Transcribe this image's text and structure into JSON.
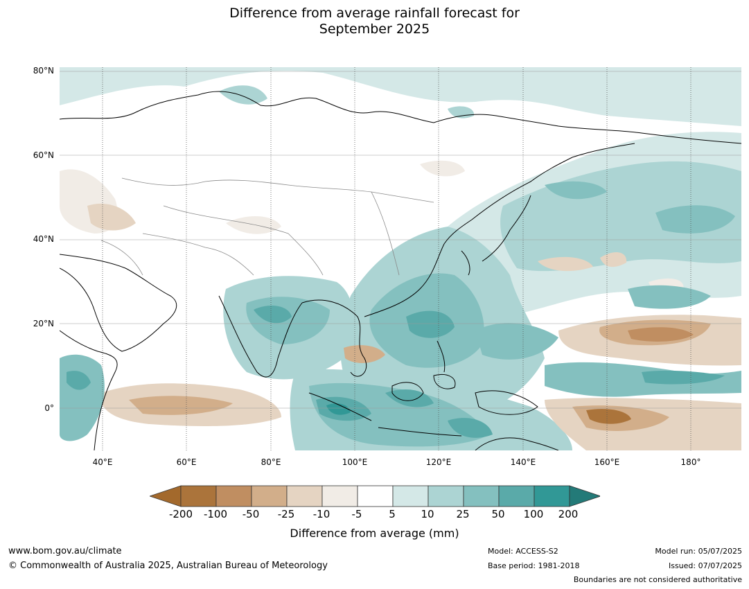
{
  "title_line1": "Difference from average rainfall forecast for",
  "title_line2": "September 2025",
  "lat_labels": [
    "80°N",
    "60°N",
    "40°N",
    "20°N",
    "0°"
  ],
  "lon_labels": [
    "40°E",
    "60°E",
    "80°E",
    "100°E",
    "120°E",
    "140°E",
    "160°E",
    "180°"
  ],
  "colorbar": {
    "labels": [
      "-200",
      "-100",
      "-50",
      "-25",
      "-10",
      "-5",
      "5",
      "10",
      "25",
      "50",
      "100",
      "200"
    ],
    "colors": [
      "#a3692c",
      "#ab743b",
      "#c08e61",
      "#d2ae8a",
      "#e5d4c2",
      "#f1ece6",
      "#ffffff",
      "#d4e8e7",
      "#acd4d3",
      "#84c0bf",
      "#5aaaa9",
      "#319896",
      "#237a78"
    ],
    "title": "Difference from average (mm)"
  },
  "footer": {
    "url": "www.bom.gov.au/climate",
    "copyright": "© Commonwealth of Australia 2025, Australian Bureau of Meteorology",
    "model": "Model: ACCESS-S2",
    "base_period": "Base period: 1981-2018",
    "model_run": "Model run: 05/07/2025",
    "issued": "Issued: 07/07/2025",
    "boundaries_note": "Boundaries are not considered authoritative"
  }
}
